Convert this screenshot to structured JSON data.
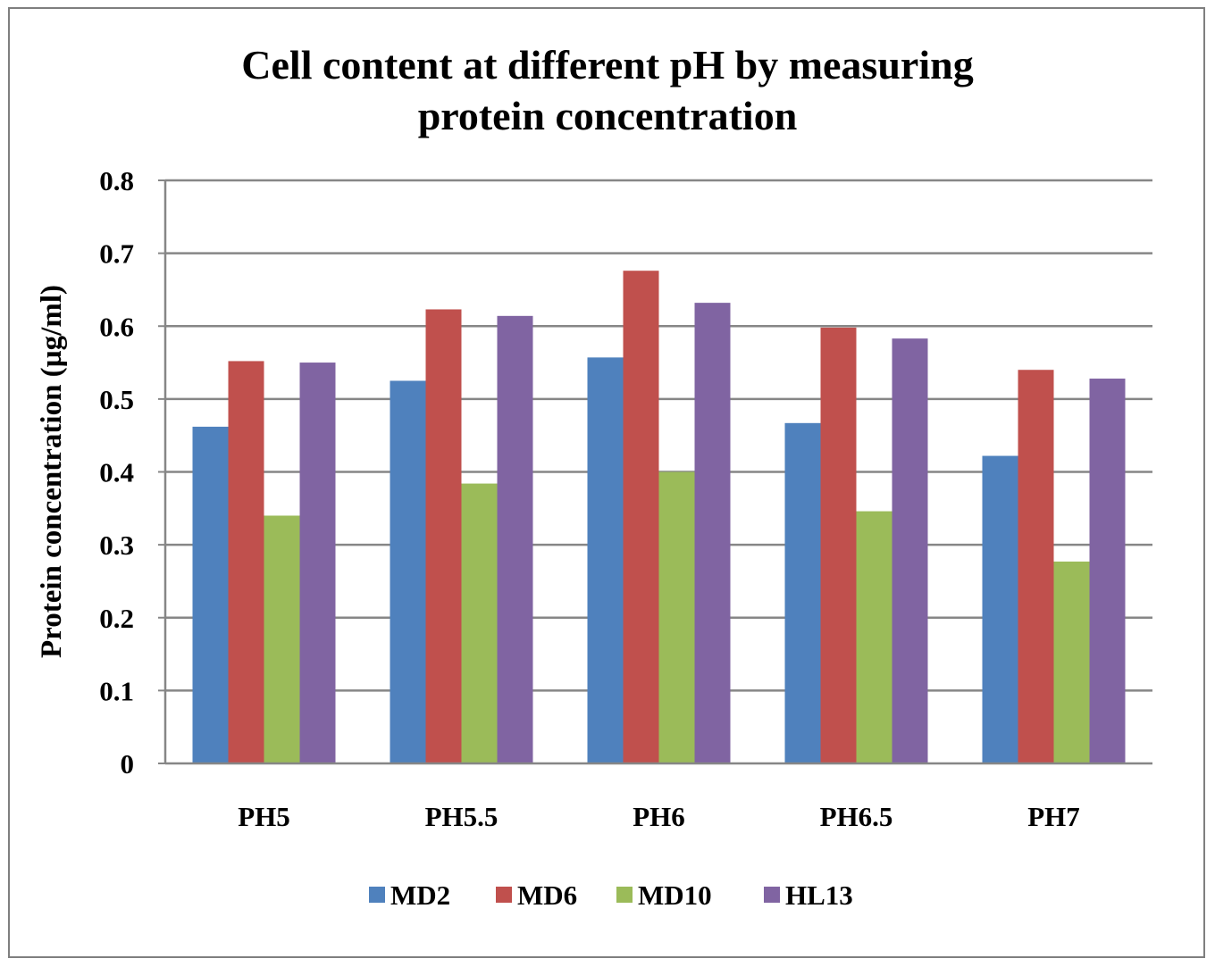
{
  "chart_data": {
    "type": "bar",
    "title_lines": [
      "Cell content at different pH by measuring",
      "protein concentration"
    ],
    "ylabel": "Protein concentration (µg/ml)",
    "xlabel": "",
    "ylim": [
      0,
      0.8
    ],
    "yticks": [
      "0",
      "0.1",
      "0.2",
      "0.3",
      "0.4",
      "0.5",
      "0.6",
      "0.7",
      "0.8"
    ],
    "ytick_values": [
      0,
      0.1,
      0.2,
      0.3,
      0.4,
      0.5,
      0.6,
      0.7,
      0.8
    ],
    "grid": true,
    "legend_position": "bottom",
    "categories": [
      "PH5",
      "PH5.5",
      "PH6",
      "PH6.5",
      "PH7"
    ],
    "series": [
      {
        "name": "MD2",
        "color": "#4f81bd",
        "values": [
          0.462,
          0.525,
          0.557,
          0.467,
          0.422
        ]
      },
      {
        "name": "MD6",
        "color": "#c0504d",
        "values": [
          0.552,
          0.623,
          0.676,
          0.598,
          0.54
        ]
      },
      {
        "name": "MD10",
        "color": "#9bbb59",
        "values": [
          0.34,
          0.384,
          0.4,
          0.346,
          0.277
        ]
      },
      {
        "name": "HL13",
        "color": "#8064a2",
        "values": [
          0.55,
          0.614,
          0.632,
          0.583,
          0.528
        ]
      }
    ]
  }
}
